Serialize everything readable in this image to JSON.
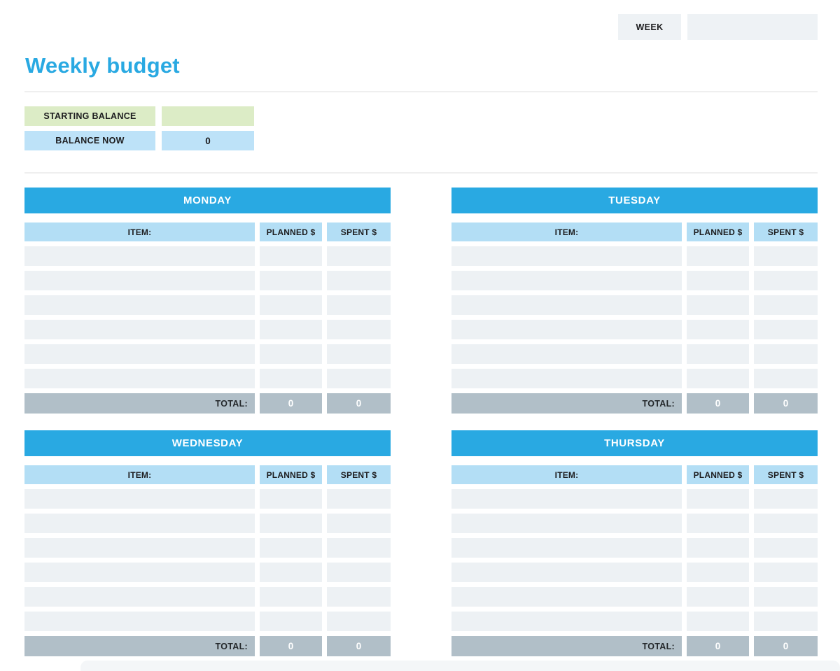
{
  "week": {
    "label": "WEEK",
    "value": ""
  },
  "title": "Weekly budget",
  "balance": {
    "starting_label": "STARTING BALANCE",
    "starting_value": "",
    "now_label": "BALANCE NOW",
    "now_value": "0"
  },
  "table_columns": {
    "item": "ITEM:",
    "planned": "PLANNED $",
    "spent": "SPENT $"
  },
  "total_label": "TOTAL:",
  "rows_per_table": 6,
  "days": [
    {
      "name": "MONDAY",
      "total_planned": "0",
      "total_spent": "0"
    },
    {
      "name": "TUESDAY",
      "total_planned": "0",
      "total_spent": "0"
    },
    {
      "name": "WEDNESDAY",
      "total_planned": "0",
      "total_spent": "0"
    },
    {
      "name": "THURSDAY",
      "total_planned": "0",
      "total_spent": "0"
    }
  ],
  "colors": {
    "accent_blue": "#29a9e2",
    "header_light_blue": "#b3def5",
    "balance_blue": "#bde2f8",
    "balance_green": "#dcecc6",
    "row_gray": "#edf1f4",
    "total_gray": "#b1bfc8",
    "box_gray": "#eef2f5"
  }
}
